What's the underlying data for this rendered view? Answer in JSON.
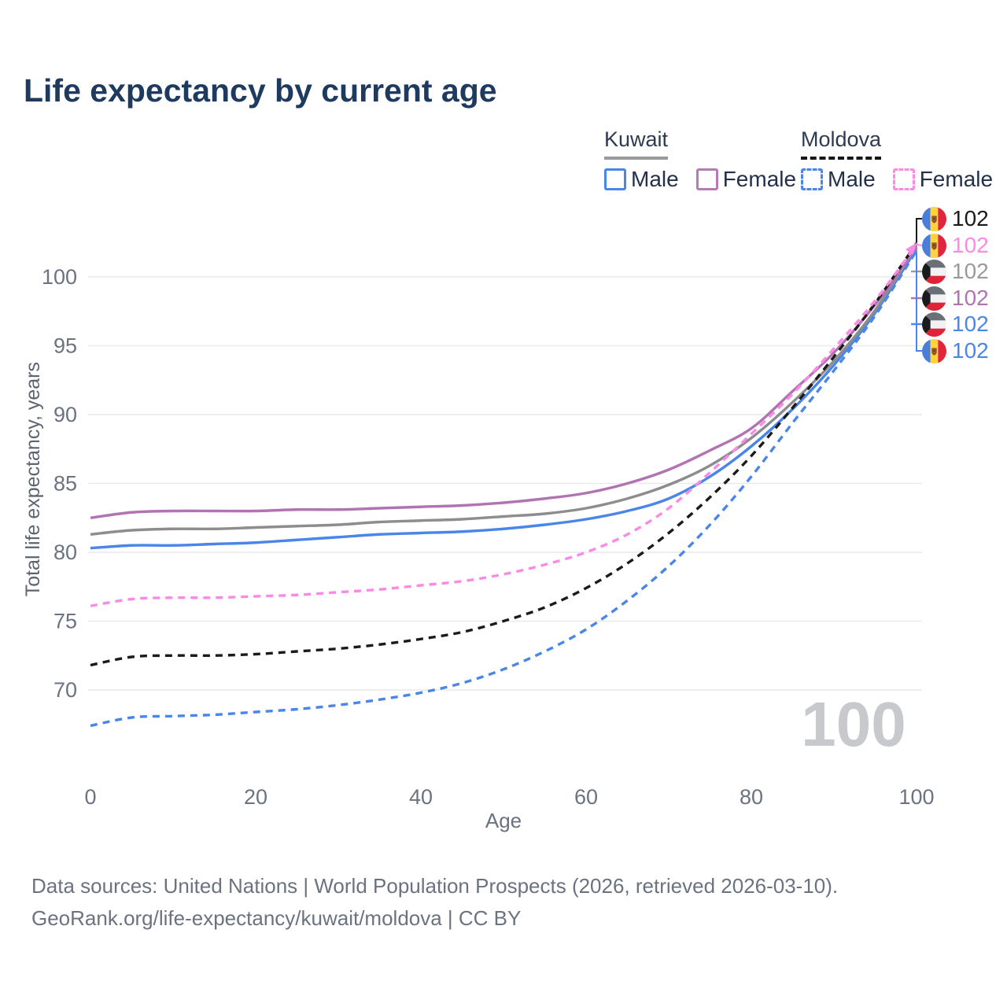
{
  "title": "Life expectancy by current age",
  "legend": {
    "groups": [
      {
        "name": "Kuwait",
        "underline_style": "solid",
        "underline_color": "#9a9a9a",
        "items": [
          {
            "label": "Male",
            "color": "#4a86e8",
            "dashed": false
          },
          {
            "label": "Female",
            "color": "#b77ab8",
            "dashed": false
          }
        ]
      },
      {
        "name": "Moldova",
        "underline_style": "dashed",
        "underline_color": "#161616",
        "items": [
          {
            "label": "Male",
            "color": "#4a86e8",
            "dashed": true
          },
          {
            "label": "Female",
            "color": "#fb8ae4",
            "dashed": true
          }
        ]
      }
    ]
  },
  "watermark": "100",
  "end_labels": [
    {
      "flag": "moldova",
      "value": "102",
      "color": "#1a1a1a"
    },
    {
      "flag": "moldova",
      "value": "102",
      "color": "#fb8ae4"
    },
    {
      "flag": "kuwait",
      "value": "102",
      "color": "#9a9a9a"
    },
    {
      "flag": "kuwait",
      "value": "102",
      "color": "#b273b2"
    },
    {
      "flag": "kuwait",
      "value": "102",
      "color": "#4a86e8"
    },
    {
      "flag": "moldova",
      "value": "102",
      "color": "#4a86e8"
    }
  ],
  "footer": {
    "line1": "Data sources: United Nations | World Population Prospects (2026, retrieved 2026-03-10).",
    "line2": "GeoRank.org/life-expectancy/kuwait/moldova | CC BY"
  },
  "chart_data": {
    "type": "line",
    "title": "Life expectancy by current age",
    "xlabel": "Age",
    "ylabel": "Total life expectancy, years",
    "xlim": [
      0,
      100
    ],
    "ylim": [
      66,
      103
    ],
    "xticks": [
      0,
      20,
      40,
      60,
      80,
      100
    ],
    "yticks": [
      70,
      75,
      80,
      85,
      90,
      95,
      100
    ],
    "grid": "horizontal",
    "legend_position": "top-right",
    "x": [
      0,
      5,
      10,
      15,
      20,
      25,
      30,
      35,
      40,
      45,
      50,
      55,
      60,
      65,
      70,
      75,
      80,
      85,
      90,
      95,
      100
    ],
    "series": [
      {
        "name": "Kuwait Male",
        "color": "#4a86e8",
        "dash": null,
        "values": [
          80.3,
          80.5,
          80.5,
          80.6,
          80.7,
          80.9,
          81.1,
          81.3,
          81.4,
          81.5,
          81.7,
          82.0,
          82.4,
          83.0,
          83.9,
          85.5,
          87.7,
          90.4,
          93.6,
          97.4,
          102.05
        ]
      },
      {
        "name": "Kuwait Both sexes",
        "color": "#8d8d8f",
        "dash": null,
        "values": [
          81.3,
          81.6,
          81.7,
          81.7,
          81.8,
          81.9,
          82.0,
          82.2,
          82.3,
          82.4,
          82.6,
          82.8,
          83.2,
          83.9,
          84.9,
          86.3,
          88.3,
          90.9,
          93.9,
          97.6,
          102.25
        ]
      },
      {
        "name": "Kuwait Female",
        "color": "#b273b2",
        "dash": null,
        "values": [
          82.5,
          82.9,
          83.0,
          83.0,
          83.0,
          83.1,
          83.1,
          83.2,
          83.3,
          83.4,
          83.6,
          83.9,
          84.3,
          85.0,
          86.0,
          87.4,
          89.0,
          91.7,
          94.5,
          98.0,
          102.15
        ]
      },
      {
        "name": "Moldova Male",
        "color": "#4a86e8",
        "dash": [
          9,
          7
        ],
        "values": [
          67.4,
          68.0,
          68.1,
          68.2,
          68.4,
          68.6,
          68.9,
          69.3,
          69.8,
          70.5,
          71.5,
          72.8,
          74.4,
          76.5,
          79.0,
          82.0,
          85.5,
          89.4,
          93.2,
          97.2,
          101.9
        ]
      },
      {
        "name": "Moldova Both sexes",
        "color": "#1b1b1b",
        "dash": [
          9,
          7
        ],
        "values": [
          71.8,
          72.4,
          72.5,
          72.5,
          72.6,
          72.8,
          73.0,
          73.3,
          73.7,
          74.2,
          75.0,
          76.0,
          77.4,
          79.2,
          81.4,
          84.0,
          87.0,
          90.5,
          94.2,
          98.1,
          102.45
        ]
      },
      {
        "name": "Moldova Female",
        "color": "#fb8ae4",
        "dash": [
          9,
          7
        ],
        "values": [
          76.1,
          76.6,
          76.7,
          76.7,
          76.8,
          76.9,
          77.1,
          77.3,
          77.6,
          77.9,
          78.4,
          79.1,
          80.0,
          81.3,
          83.2,
          85.8,
          88.6,
          91.5,
          94.8,
          98.3,
          102.35
        ]
      }
    ],
    "end_value_label": "102",
    "age_indicator": "100"
  }
}
